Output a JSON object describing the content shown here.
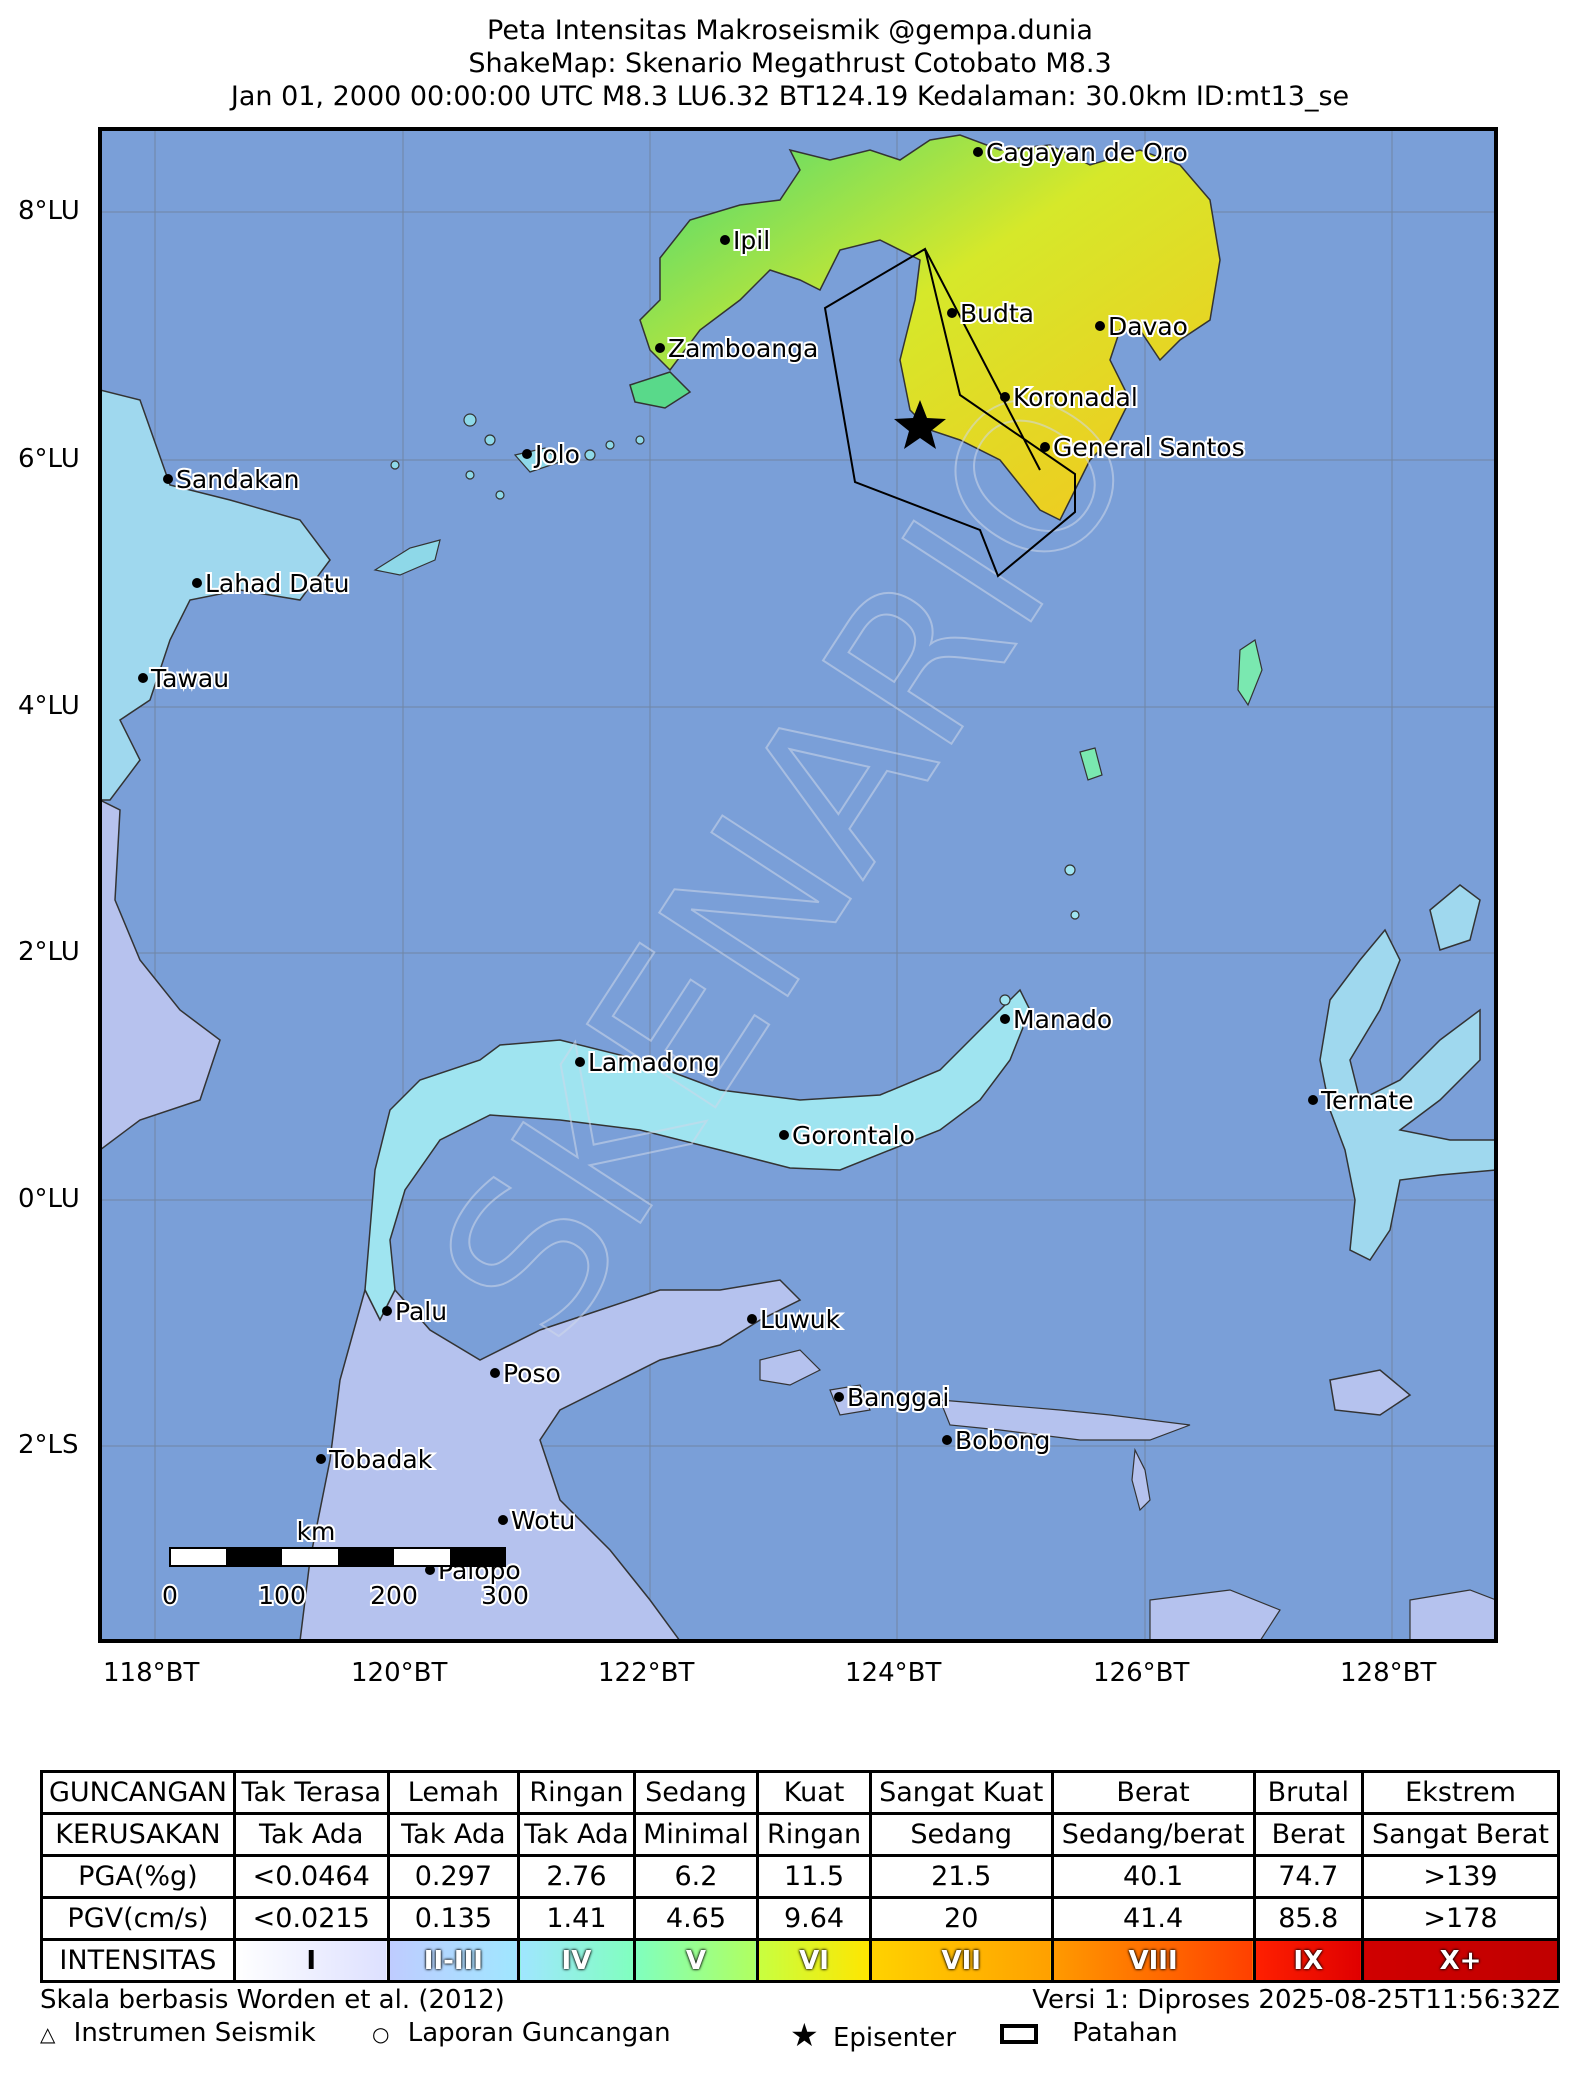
{
  "title": {
    "line1": "Peta Intensitas Makroseismik @gempa.dunia",
    "line2": "ShakeMap: Skenario Megathrust Cotobato M8.3",
    "line3": "Jan 01, 2000 00:00:00 UTC M8.3 LU6.32 BT124.19 Kedalaman: 30.0km ID:mt13_se"
  },
  "watermark": "SKENARIO",
  "lat_labels": [
    "8°LU",
    "6°LU",
    "4°LU",
    "2°LU",
    "0°LU",
    "2°LS"
  ],
  "lon_labels": [
    "118°BT",
    "120°BT",
    "122°BT",
    "124°BT",
    "126°BT",
    "128°BT"
  ],
  "cities": [
    {
      "name": "Cagayan de Oro"
    },
    {
      "name": "Ipil"
    },
    {
      "name": "Budta"
    },
    {
      "name": "Davao"
    },
    {
      "name": "Zamboanga"
    },
    {
      "name": "Koronadal"
    },
    {
      "name": "General Santos"
    },
    {
      "name": "Jolo"
    },
    {
      "name": "Sandakan"
    },
    {
      "name": "Lahad Datu"
    },
    {
      "name": "Tawau"
    },
    {
      "name": "Manado"
    },
    {
      "name": "Lamadong"
    },
    {
      "name": "Gorontalo"
    },
    {
      "name": "Ternate"
    },
    {
      "name": "Palu"
    },
    {
      "name": "Luwuk"
    },
    {
      "name": "Poso"
    },
    {
      "name": "Banggai"
    },
    {
      "name": "Bobong"
    },
    {
      "name": "Tobadak"
    },
    {
      "name": "Wotu"
    },
    {
      "name": "Palopo"
    }
  ],
  "scale_bar": {
    "unit": "km",
    "ticks": [
      "0",
      "100",
      "200",
      "300"
    ]
  },
  "legend": {
    "rows": [
      {
        "head": "GUNCANGAN",
        "cells": [
          "Tak Terasa",
          "Lemah",
          "Ringan",
          "Sedang",
          "Kuat",
          "Sangat Kuat",
          "Berat",
          "Brutal",
          "Ekstrem"
        ]
      },
      {
        "head": "KERUSAKAN",
        "cells": [
          "Tak Ada",
          "Tak Ada",
          "Tak Ada",
          "Minimal",
          "Ringan",
          "Sedang",
          "Sedang/berat",
          "Berat",
          "Sangat Berat"
        ]
      },
      {
        "head": "PGA(%g)",
        "cells": [
          "<0.0464",
          "0.297",
          "2.76",
          "6.2",
          "11.5",
          "21.5",
          "40.1",
          "74.7",
          ">139"
        ]
      },
      {
        "head": "PGV(cm/s)",
        "cells": [
          "<0.0215",
          "0.135",
          "1.41",
          "4.65",
          "9.64",
          "20",
          "41.4",
          "85.8",
          ">178"
        ]
      }
    ],
    "intensity_head": "INTENSITAS",
    "intensity": [
      {
        "label": "I",
        "from": "#ffffff",
        "to": "#dde0ff"
      },
      {
        "label": "II-III",
        "from": "#bfccff",
        "to": "#a0e6ff"
      },
      {
        "label": "IV",
        "from": "#a0e6ff",
        "to": "#80ffbf"
      },
      {
        "label": "V",
        "from": "#80ffbf",
        "to": "#b0ff60"
      },
      {
        "label": "VI",
        "from": "#c8ff40",
        "to": "#ffe600"
      },
      {
        "label": "VII",
        "from": "#ffd200",
        "to": "#ffa000"
      },
      {
        "label": "VIII",
        "from": "#ff9a00",
        "to": "#ff4000"
      },
      {
        "label": "IX",
        "from": "#ff2000",
        "to": "#e00000"
      },
      {
        "label": "X+",
        "from": "#d00000",
        "to": "#c00000"
      }
    ]
  },
  "footer": {
    "scale_note": "Skala berbasis Worden et al. (2012)",
    "version": "Versi 1: Diproses 2025-08-25T11:56:32Z",
    "key_instrument": "Instrumen Seismik",
    "key_report": "Laporan Guncangan",
    "key_epicenter": "Episenter",
    "key_fault": "Patahan"
  },
  "colors": {
    "sea": "#7a9fd8",
    "land_low": "#b8c4ee",
    "land_mid": "#a8dcef",
    "land_green": "#6fe49a",
    "land_yellow": "#f0e020",
    "land_orange": "#f6c426"
  }
}
